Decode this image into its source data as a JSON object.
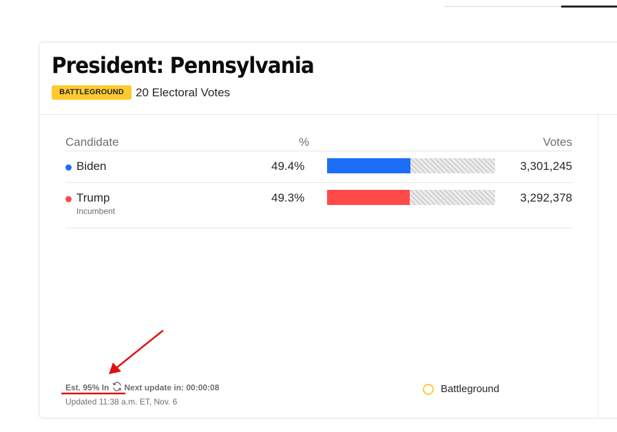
{
  "race": {
    "title": "President: Pennsylvania",
    "badge": "BATTLEGROUND",
    "electoral_votes": "20 Electoral Votes"
  },
  "table": {
    "headers": {
      "candidate": "Candidate",
      "percent": "%",
      "votes": "Votes"
    },
    "candidates": [
      {
        "name": "Biden",
        "sub": "",
        "percent": "49.4%",
        "share": 0.494,
        "votes": "3,301,245",
        "color": "#1d6ef7"
      },
      {
        "name": "Trump",
        "sub": "Incumbent",
        "percent": "49.3%",
        "share": 0.493,
        "votes": "3,292,378",
        "color": "#fe4a49"
      }
    ]
  },
  "footer": {
    "est_in": "Est. 95% In",
    "next_update_label": "Next update in: 00:00:08",
    "updated": "Updated 11:38 a.m. ET, Nov. 6",
    "legend_label": "Battleground",
    "refresh_icon": "refresh-icon"
  },
  "colors": {
    "accent_battleground": "#fecb2f",
    "biden_blue": "#1d6ef7",
    "trump_red": "#fe4a49",
    "annotation_red": "#e01010"
  }
}
